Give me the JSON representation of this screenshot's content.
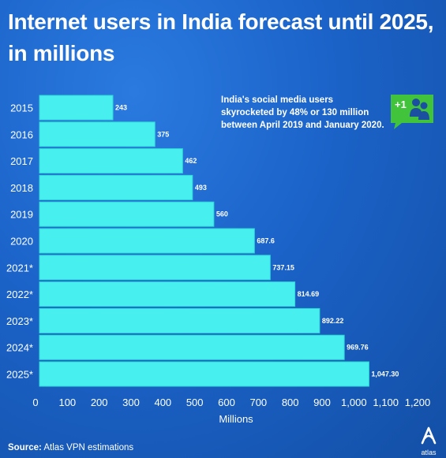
{
  "title_line1": "Internet users in India forecast until 2025,",
  "title_line2": "in millions",
  "annotation": "India's social media users skyrocketed by 48% or 130 million between April 2019 and January 2020.",
  "badge_text": "+1",
  "source_label": "Source:",
  "source_text": "Atlas VPN estimations",
  "logo_text": "atlas",
  "colors": {
    "bar": "#47f0ee",
    "bar_edge": "#2fd8d6",
    "background": "#1b63c8",
    "badge": "#42c33c",
    "text": "#ffffff"
  },
  "chart_data": {
    "type": "bar",
    "orientation": "horizontal",
    "title": "Internet users in India forecast until 2025, in millions",
    "xlabel": "Millions",
    "ylabel": "",
    "xlim": [
      0,
      1200
    ],
    "xticks": [
      0,
      100,
      200,
      300,
      400,
      500,
      600,
      700,
      800,
      900,
      1000,
      1100,
      1200
    ],
    "xtick_labels": [
      "0",
      "100",
      "200",
      "300",
      "400",
      "500",
      "600",
      "700",
      "800",
      "900",
      "1,000",
      "1,100",
      "1,200"
    ],
    "categories": [
      "2015",
      "2016",
      "2017",
      "2018",
      "2019",
      "2020",
      "2021*",
      "2022*",
      "2023*",
      "2024*",
      "2025*"
    ],
    "values": [
      243,
      375,
      462,
      493,
      560,
      687.6,
      737.15,
      814.69,
      892.22,
      969.76,
      1047.3
    ],
    "value_labels": [
      "243",
      "375",
      "462",
      "493",
      "560",
      "687.6",
      "737.15",
      "814.69",
      "892.22",
      "969.76",
      "1,047.30"
    ],
    "grid": false,
    "legend": "none"
  }
}
